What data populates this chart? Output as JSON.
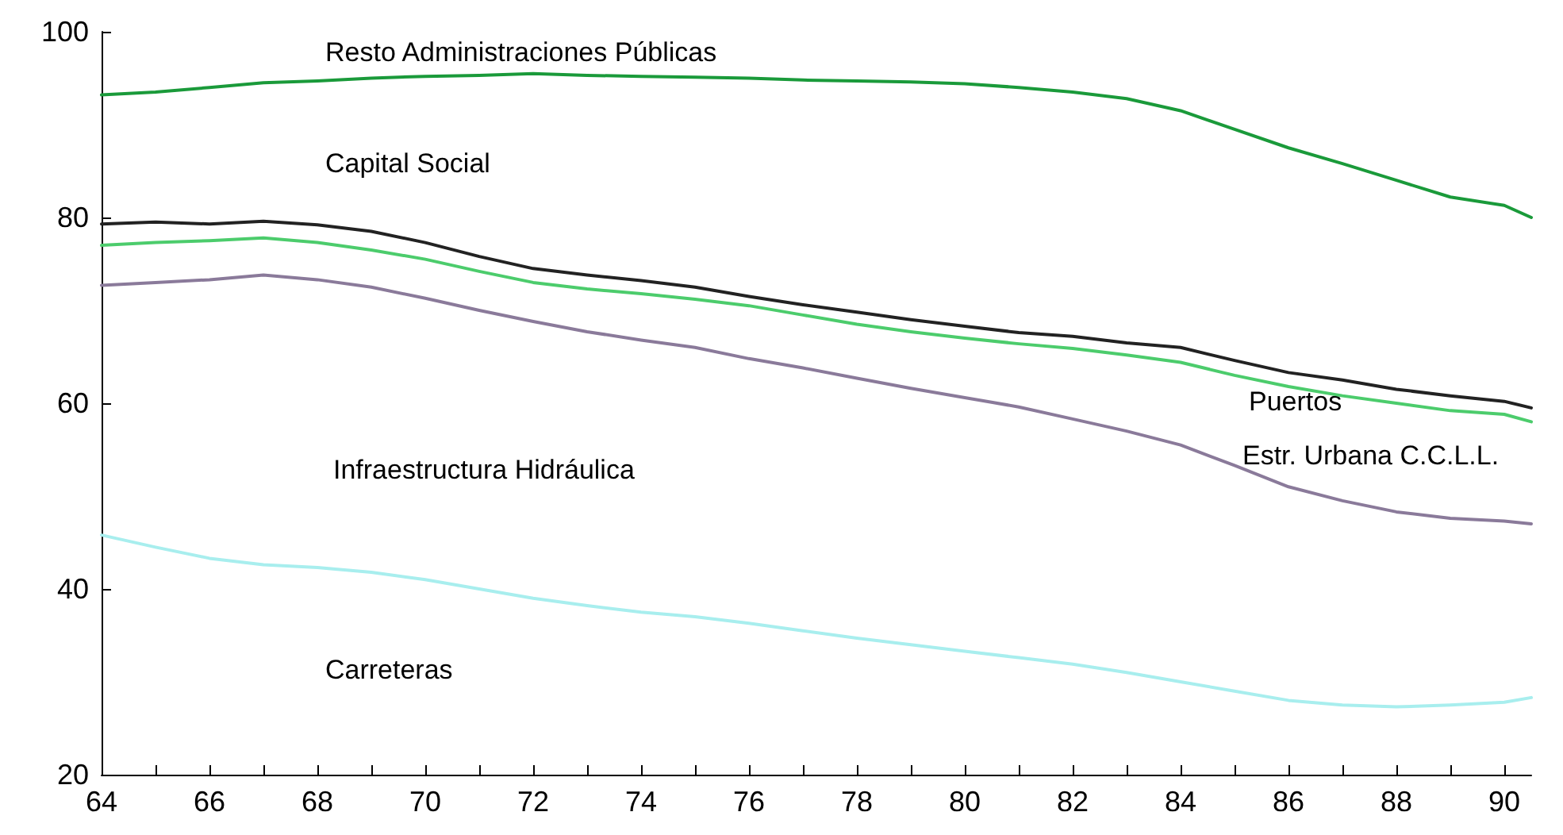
{
  "chart_data": {
    "type": "line",
    "x": [
      64,
      65,
      66,
      67,
      68,
      69,
      70,
      71,
      72,
      73,
      74,
      75,
      76,
      77,
      78,
      79,
      80,
      81,
      82,
      83,
      84,
      85,
      86,
      87,
      88,
      89,
      90,
      90.5
    ],
    "series": [
      {
        "color": "#1a9a3a",
        "values": [
          93.2,
          93.5,
          94,
          94.5,
          94.7,
          95,
          95.2,
          95.3,
          95.5,
          95.3,
          95.2,
          95.1,
          95,
          94.8,
          94.7,
          94.6,
          94.4,
          94,
          93.5,
          92.8,
          91.5,
          89.5,
          87.5,
          85.8,
          84,
          82.2,
          81.3,
          80
        ]
      },
      {
        "color": "#222222",
        "values": [
          79.3,
          79.5,
          79.3,
          79.6,
          79.2,
          78.5,
          77.3,
          75.8,
          74.5,
          73.8,
          73.2,
          72.5,
          71.5,
          70.6,
          69.8,
          69,
          68.3,
          67.6,
          67.2,
          66.5,
          66,
          64.6,
          63.3,
          62.5,
          61.5,
          60.8,
          60.2,
          59.5
        ]
      },
      {
        "color": "#4ccc6c",
        "values": [
          77,
          77.3,
          77.5,
          77.8,
          77.3,
          76.5,
          75.5,
          74.2,
          73,
          72.3,
          71.8,
          71.2,
          70.5,
          69.5,
          68.5,
          67.7,
          67,
          66.4,
          65.9,
          65.2,
          64.4,
          63,
          61.8,
          60.8,
          60,
          59.2,
          58.8,
          58
        ]
      },
      {
        "color": "#8a7a9a",
        "values": [
          72.7,
          73,
          73.3,
          73.8,
          73.3,
          72.5,
          71.3,
          70,
          68.8,
          67.7,
          66.8,
          66,
          64.8,
          63.8,
          62.7,
          61.6,
          60.6,
          59.6,
          58.3,
          57,
          55.5,
          53.3,
          51,
          49.5,
          48.3,
          47.6,
          47.3,
          47
        ]
      },
      {
        "color": "#a8eeee",
        "values": [
          45.8,
          44.5,
          43.3,
          42.6,
          42.3,
          41.8,
          41,
          40,
          39,
          38.2,
          37.5,
          37,
          36.3,
          35.5,
          34.7,
          34,
          33.3,
          32.6,
          31.9,
          31,
          30,
          29,
          28,
          27.5,
          27.3,
          27.5,
          27.8,
          28.3
        ]
      }
    ],
    "xlim": [
      64,
      90.5
    ],
    "xticks": [
      64,
      {
        "value": 65,
        "label": null
      },
      66,
      {
        "value": 67,
        "label": null
      },
      68,
      {
        "value": 69,
        "label": null
      },
      70,
      {
        "value": 71,
        "label": null
      },
      72,
      {
        "value": 73,
        "label": null
      },
      74,
      {
        "value": 75,
        "label": null
      },
      76,
      {
        "value": 77,
        "label": null
      },
      78,
      {
        "value": 79,
        "label": null
      },
      80,
      {
        "value": 81,
        "label": null
      },
      82,
      {
        "value": 83,
        "label": null
      },
      84,
      {
        "value": 85,
        "label": null
      },
      86,
      {
        "value": 87,
        "label": null
      },
      88,
      {
        "value": 89,
        "label": null
      },
      90
    ],
    "ylim": [
      20,
      100
    ],
    "yticks": [
      20,
      40,
      60,
      80,
      100
    ],
    "grid": false,
    "marker": "none",
    "line_style": "solid",
    "annotations": [
      "Resto Administraciones Públicas",
      "Capital Social",
      "Puertos",
      "Estr. Urbana C.C.L.L.",
      "Infraestructura Hidráulica",
      "Carreteras"
    ]
  }
}
